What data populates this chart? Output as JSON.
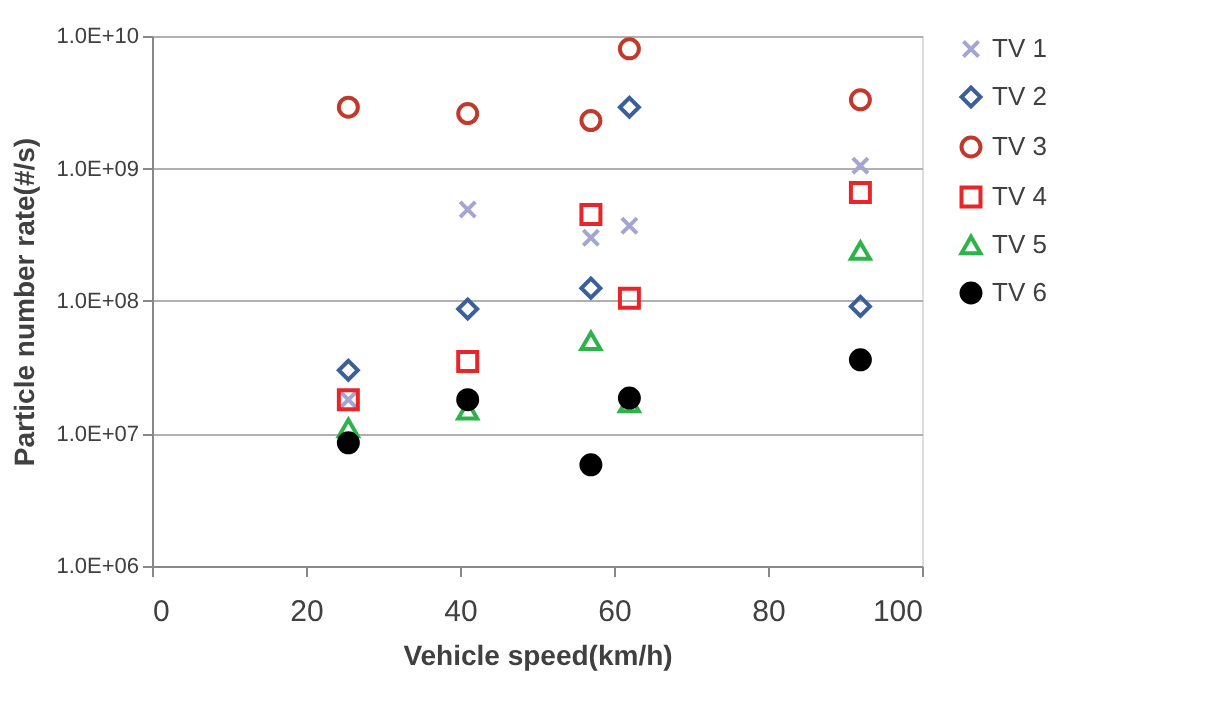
{
  "chart_data": {
    "type": "scatter",
    "xlabel": "Vehicle speed(km/h)",
    "ylabel": "Particle number rate(#/s)",
    "x": [
      25.5,
      41,
      57,
      62,
      92
    ],
    "series": [
      {
        "name": "TV 1",
        "color": "#a5a5d2",
        "marker": "cross",
        "values": [
          18000000.0,
          490000000.0,
          300000000.0,
          370000000.0,
          1050000000.0
        ]
      },
      {
        "name": "TV 2",
        "color": "#3a5f9a",
        "marker": "diamond",
        "values": [
          30000000.0,
          87000000.0,
          125000000.0,
          2900000000.0,
          91000000.0
        ]
      },
      {
        "name": "TV 3",
        "color": "#c0392b",
        "marker": "circle",
        "values": [
          2900000000.0,
          2600000000.0,
          2300000000.0,
          8000000000.0,
          3300000000.0
        ]
      },
      {
        "name": "TV 4",
        "color": "#e8262a",
        "marker": "square",
        "values": [
          18000000.0,
          35000000.0,
          450000000.0,
          105000000.0,
          660000000.0
        ]
      },
      {
        "name": "TV 5",
        "color": "#2eb34a",
        "marker": "triangle",
        "values": [
          11000000.0,
          15000000.0,
          50000000.0,
          17000000.0,
          240000000.0
        ]
      },
      {
        "name": "TV 6",
        "color": "#000000",
        "marker": "filled_circle",
        "values": [
          8500000.0,
          18000000.0,
          5800000.0,
          18500000.0,
          36000000.0
        ]
      }
    ],
    "xlim": [
      0,
      100
    ],
    "xticks": [
      0,
      20,
      40,
      60,
      80,
      100
    ],
    "log": "y",
    "ylim": [
      1000000.0,
      10000000000.0
    ],
    "yticks": [
      {
        "value": 1000000.0,
        "label": "1.0E+06"
      },
      {
        "value": 10000000.0,
        "label": "1.0E+07"
      },
      {
        "value": 100000000.0,
        "label": "1.0E+08"
      },
      {
        "value": 1000000000.0,
        "label": "1.0E+09"
      },
      {
        "value": 10000000000.0,
        "label": "1.0E+10"
      }
    ],
    "grid": "y",
    "legend": "right"
  }
}
